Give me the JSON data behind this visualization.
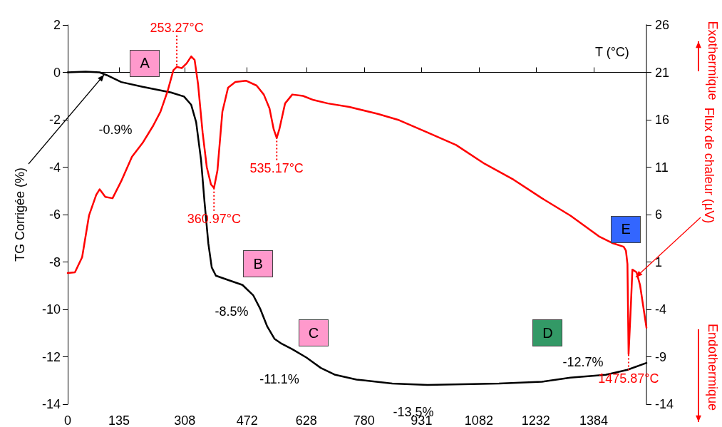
{
  "chart_data": {
    "type": "line",
    "xlabel": "T (°C)",
    "ylabel": "TG Corrigée (%)",
    "y2label": "Flux de chaleur (µV)",
    "xlim": [
      0,
      1523
    ],
    "xticks": [
      0,
      135,
      308,
      472,
      628,
      780,
      931,
      1082,
      1232,
      1384
    ],
    "ylim": [
      -14,
      2
    ],
    "yticks": [
      -14,
      -12,
      -10,
      -8,
      -6,
      -4,
      -2,
      0,
      2
    ],
    "y2lim": [
      -14,
      26
    ],
    "y2ticks": [
      -14,
      -9,
      -4,
      1,
      6,
      11,
      16,
      21,
      26
    ],
    "marker": "none",
    "line_style": "solid",
    "series": [
      {
        "color": "#000000",
        "x": [
          0,
          47,
          84,
          103,
          141,
          197,
          272,
          306,
          325,
          338,
          351,
          360,
          370,
          379,
          390,
          422,
          460,
          488,
          507,
          525,
          544,
          563,
          591,
          628,
          666,
          704,
          760,
          854,
          947,
          1135,
          1248,
          1323,
          1416,
          1473,
          1523
        ],
        "values": [
          0,
          0.03,
          0,
          -0.12,
          -0.41,
          -0.61,
          -0.85,
          -1.02,
          -1.37,
          -2.1,
          -3.71,
          -5.46,
          -7.21,
          -8.23,
          -8.58,
          -8.76,
          -8.97,
          -9.4,
          -9.99,
          -10.72,
          -11.24,
          -11.45,
          -11.68,
          -12.03,
          -12.47,
          -12.76,
          -12.96,
          -13.13,
          -13.19,
          -13.13,
          -13.05,
          -12.88,
          -12.76,
          -12.55,
          -12.26
        ]
      },
      {
        "color": "#ff0000",
        "axis": "y2",
        "x": [
          0,
          19,
          38,
          56,
          75,
          84,
          99,
          118,
          141,
          169,
          197,
          225,
          244,
          263,
          278,
          287,
          300,
          313,
          325,
          334,
          343,
          355,
          366,
          377,
          385,
          394,
          407,
          422,
          441,
          469,
          497,
          516,
          531,
          542,
          550,
          557,
          572,
          591,
          619,
          647,
          685,
          741,
          816,
          872,
          947,
          1022,
          1097,
          1173,
          1248,
          1323,
          1398,
          1435,
          1463,
          1469,
          1473,
          1476,
          1482,
          1486,
          1497,
          1506,
          1523
        ],
        "values": [
          -0.17,
          -0.09,
          1.51,
          5.89,
          8.08,
          8.66,
          7.86,
          7.72,
          9.54,
          12.09,
          13.55,
          15.38,
          16.84,
          19.03,
          21.22,
          21.58,
          21.44,
          21.95,
          22.68,
          22.31,
          19.76,
          14.65,
          11.0,
          9.18,
          8.81,
          10.64,
          16.84,
          19.39,
          19.98,
          20.12,
          19.61,
          18.66,
          17.2,
          15.01,
          14.07,
          15.01,
          17.72,
          18.66,
          18.52,
          18.08,
          17.72,
          17.35,
          16.62,
          15.96,
          14.65,
          13.34,
          11.36,
          9.69,
          7.72,
          5.89,
          3.7,
          2.97,
          2.61,
          2.2,
          0.78,
          -8.71,
          -3.6,
          0.2,
          -0.09,
          -1.41,
          -5.93
        ]
      }
    ],
    "annotations": [
      {
        "text": "A",
        "x": 203,
        "y": 0.38
      },
      {
        "text": "B",
        "x": 501,
        "y": -8.09
      },
      {
        "text": "C",
        "x": 647,
        "y": -11.0
      },
      {
        "text": "D",
        "x": 1263,
        "y": -11.0
      },
      {
        "text": "E",
        "x": 1469,
        "y": -6.63
      },
      "-0.9%",
      "-8.5%",
      "-11.1%",
      "-13.5%",
      "-12.7%",
      {
        "text": "253.27°C",
        "x": 287,
        "y": 0.23
      },
      {
        "text": "360.97°C",
        "x": 385,
        "y": -4.88
      },
      {
        "text": "535.17°C",
        "x": 550,
        "y": -2.77
      },
      {
        "text": "1475.87°C",
        "x": 1476,
        "y": -11.88
      },
      "Exothermique",
      "Endothermique"
    ]
  }
}
